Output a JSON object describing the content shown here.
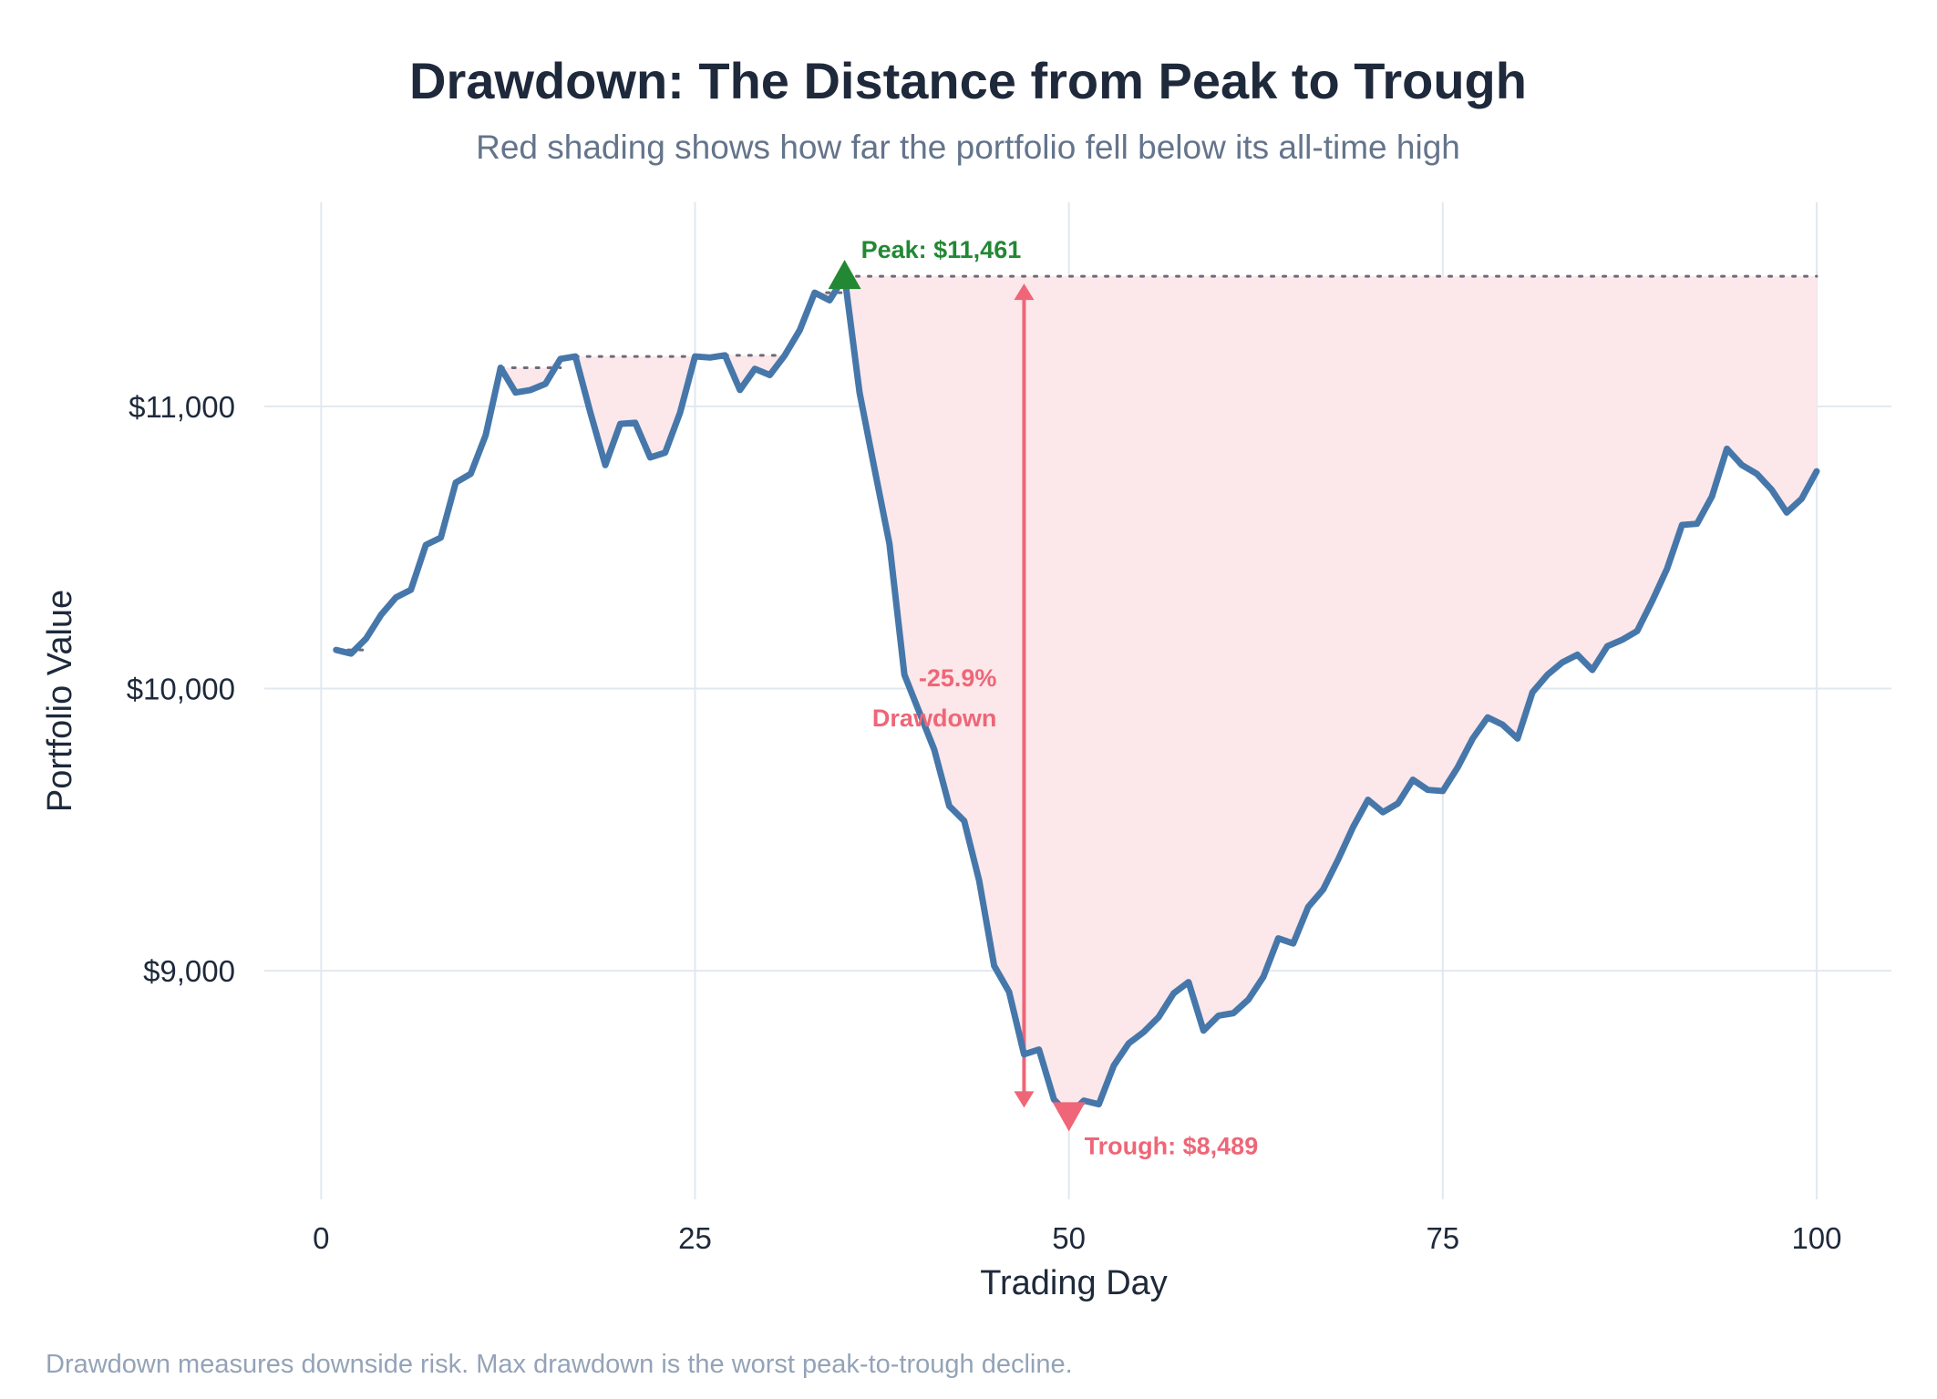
{
  "colors": {
    "line": "#4677aa",
    "shade": "#fce7ea",
    "grid": "#e2e8f0",
    "peak": "#228833",
    "trough": "#ee6677",
    "running_max": "#6b6b7b"
  },
  "chart_data": {
    "type": "line",
    "title": "Drawdown: The Distance from Peak to Trough",
    "subtitle": "Red shading shows how far the portfolio fell below its all-time high",
    "xlabel": "Trading Day",
    "ylabel": "Portfolio Value",
    "footnote": "Drawdown measures downside risk. Max drawdown is the worst peak-to-trough decline.",
    "xlim": [
      -3.8,
      105
    ],
    "ylim": [
      8190,
      11723
    ],
    "grid": true,
    "x_ticks": [
      0,
      25,
      50,
      75,
      100
    ],
    "x_tick_labels": [
      "0",
      "25",
      "50",
      "75",
      "100"
    ],
    "y_ticks": [
      9000,
      10000,
      11000
    ],
    "y_tick_labels": [
      "$9,000",
      "$10,000",
      "$11,000"
    ],
    "series": [
      {
        "name": "Portfolio Value",
        "x": [
          1,
          2,
          3,
          4,
          5,
          6,
          7,
          8,
          9,
          10,
          11,
          12,
          13,
          14,
          15,
          16,
          17,
          18,
          19,
          20,
          21,
          22,
          23,
          24,
          25,
          26,
          27,
          28,
          29,
          30,
          31,
          32,
          33,
          34,
          35,
          36,
          37,
          38,
          39,
          40,
          41,
          42,
          43,
          44,
          45,
          46,
          47,
          48,
          49,
          50,
          51,
          52,
          53,
          54,
          55,
          56,
          57,
          58,
          59,
          60,
          61,
          62,
          63,
          64,
          65,
          66,
          67,
          68,
          69,
          70,
          71,
          72,
          73,
          74,
          75,
          76,
          77,
          78,
          79,
          80,
          81,
          82,
          83,
          84,
          85,
          86,
          87,
          88,
          89,
          90,
          91,
          92,
          93,
          94,
          95,
          96,
          97,
          98,
          99,
          100
        ],
        "values": [
          10137,
          10124,
          10177,
          10261,
          10323,
          10350,
          10509,
          10535,
          10730,
          10761,
          10898,
          11137,
          11049,
          11058,
          11080,
          11168,
          11177,
          10978,
          10792,
          10938,
          10942,
          10819,
          10836,
          10978,
          11177,
          11173,
          11181,
          11058,
          11133,
          11111,
          11181,
          11270,
          11403,
          11376,
          11461,
          11049,
          10779,
          10513,
          10049,
          9916,
          9783,
          9584,
          9531,
          9319,
          9018,
          8925,
          8704,
          8721,
          8544,
          8489,
          8540,
          8527,
          8664,
          8743,
          8783,
          8836,
          8920,
          8960,
          8788,
          8841,
          8850,
          8898,
          8978,
          9115,
          9097,
          9226,
          9288,
          9394,
          9509,
          9606,
          9562,
          9593,
          9677,
          9641,
          9637,
          9721,
          9823,
          9898,
          9872,
          9823,
          9987,
          10049,
          10093,
          10120,
          10066,
          10150,
          10173,
          10204,
          10310,
          10425,
          10580,
          10584,
          10681,
          10850,
          10792,
          10761,
          10704,
          10624,
          10673,
          10770
        ]
      }
    ],
    "annotations": {
      "peak": {
        "day": 35,
        "value": 11461,
        "label": "Peak: $11,461"
      },
      "trough": {
        "day": 50,
        "value": 8489,
        "label": "Trough: $8,489"
      },
      "drawdown_arrow_day": 47,
      "drawdown_pct": "-25.9%",
      "drawdown_label": "Drawdown"
    }
  }
}
